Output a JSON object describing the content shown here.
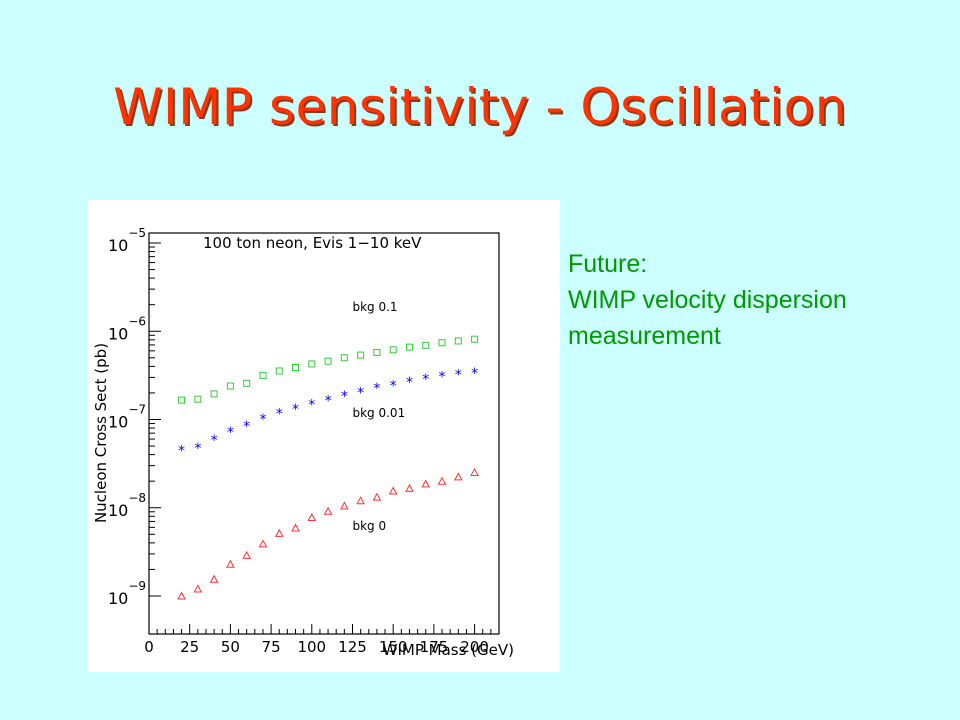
{
  "slide": {
    "title": "WIMP sensitivity - Oscillation",
    "note_lines": [
      "Future:",
      "WIMP velocity dispersion",
      "measurement"
    ]
  },
  "colors": {
    "background": "#ccffff",
    "title": "#ff3300",
    "note": "#009900",
    "series_bkg_0.1": "#33cc33",
    "series_bkg_0.01": "#0000ff",
    "series_bkg_0": "#ff3333"
  },
  "chart_data": {
    "type": "scatter",
    "title": "100 ton neon, Evis 1−10 keV",
    "xlabel": "WIMP Mass (GeV)",
    "ylabel": "Nucleon Cross Sect (pb)",
    "xlim": [
      0,
      215
    ],
    "ylim": [
      -9.0,
      -5.0
    ],
    "yscale": "log",
    "x_ticks": [
      0,
      25,
      50,
      75,
      100,
      125,
      150,
      175,
      200
    ],
    "y_ticks": [
      {
        "base": "10",
        "exp": "−5",
        "value": -5
      },
      {
        "base": "10",
        "exp": "−6",
        "value": -6
      },
      {
        "base": "10",
        "exp": "−7",
        "value": -7
      },
      {
        "base": "10",
        "exp": "−8",
        "value": -8
      },
      {
        "base": "10",
        "exp": "−9",
        "value": -9
      }
    ],
    "grid": false,
    "series": [
      {
        "name": "bkg 0.1",
        "marker": "square",
        "color": "#33cc33",
        "x": [
          20,
          30,
          40,
          50,
          60,
          70,
          80,
          90,
          100,
          110,
          120,
          130,
          140,
          150,
          160,
          170,
          180,
          190,
          200
        ],
        "log10_y": [
          -6.78,
          -6.77,
          -6.71,
          -6.62,
          -6.59,
          -6.5,
          -6.45,
          -6.41,
          -6.37,
          -6.34,
          -6.3,
          -6.27,
          -6.24,
          -6.21,
          -6.18,
          -6.16,
          -6.13,
          -6.11,
          -6.09
        ]
      },
      {
        "name": "bkg 0.01",
        "marker": "star",
        "color": "#0000ff",
        "x": [
          20,
          30,
          40,
          50,
          60,
          70,
          80,
          90,
          100,
          110,
          120,
          130,
          140,
          150,
          160,
          170,
          180,
          190,
          200
        ],
        "log10_y": [
          -7.33,
          -7.3,
          -7.21,
          -7.12,
          -7.05,
          -6.97,
          -6.91,
          -6.86,
          -6.81,
          -6.76,
          -6.71,
          -6.67,
          -6.62,
          -6.59,
          -6.55,
          -6.52,
          -6.49,
          -6.47,
          -6.45
        ]
      },
      {
        "name": "bkg 0",
        "marker": "triangle",
        "color": "#ff3333",
        "x": [
          20,
          30,
          40,
          50,
          60,
          70,
          80,
          90,
          100,
          110,
          120,
          130,
          140,
          150,
          160,
          170,
          180,
          190,
          200
        ],
        "log10_y": [
          -9.0,
          -8.92,
          -8.81,
          -8.64,
          -8.54,
          -8.41,
          -8.29,
          -8.23,
          -8.11,
          -8.04,
          -7.98,
          -7.92,
          -7.88,
          -7.81,
          -7.78,
          -7.73,
          -7.7,
          -7.65,
          -7.6
        ]
      }
    ],
    "annotations": [
      {
        "text": "bkg 0.1",
        "x": 125,
        "log10_y": -5.77
      },
      {
        "text": "bkg 0.01",
        "x": 125,
        "log10_y": -6.97
      },
      {
        "text": "bkg 0",
        "x": 125,
        "log10_y": -8.25
      }
    ]
  }
}
